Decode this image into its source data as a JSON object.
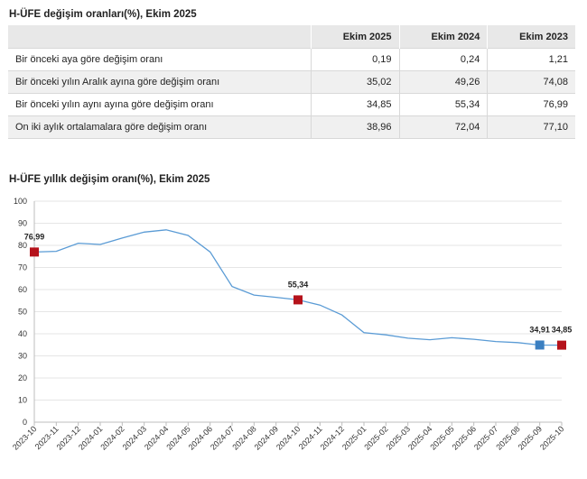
{
  "table_title": "H-ÜFE değişim oranları(%), Ekim 2025",
  "table": {
    "headers": [
      "",
      "Ekim 2025",
      "Ekim 2024",
      "Ekim 2023"
    ],
    "rows": [
      {
        "label": "Bir önceki aya göre değişim oranı",
        "values": [
          "0,19",
          "0,24",
          "1,21"
        ]
      },
      {
        "label": "Bir önceki yılın Aralık ayına göre değişim oranı",
        "values": [
          "35,02",
          "49,26",
          "74,08"
        ]
      },
      {
        "label": "Bir önceki yılın aynı ayına göre değişim oranı",
        "values": [
          "34,85",
          "55,34",
          "76,99"
        ]
      },
      {
        "label": "On iki aylık ortalamalara göre değişim oranı",
        "values": [
          "38,96",
          "72,04",
          "77,10"
        ]
      }
    ]
  },
  "chart_title": "H-ÜFE yıllık değişim oranı(%), Ekim 2025",
  "colors": {
    "line": "#5a9bd5",
    "marker_red": "#b5121b",
    "marker_blue": "#3a7fc1",
    "grid": "#e6e6e6"
  },
  "chart_data": {
    "type": "line",
    "title": "H-ÜFE yıllık değişim oranı(%), Ekim 2025",
    "xlabel": "",
    "ylabel": "",
    "ylim": [
      0,
      100
    ],
    "yticks": [
      0,
      10,
      20,
      30,
      40,
      50,
      60,
      70,
      80,
      90,
      100
    ],
    "grid": true,
    "categories": [
      "2023-10",
      "2023-11",
      "2023-12",
      "2024-01",
      "2024-02",
      "2024-03",
      "2024-04",
      "2024-05",
      "2024-06",
      "2024-07",
      "2024-08",
      "2024-09",
      "2024-10",
      "2024-11",
      "2024-12",
      "2025-01",
      "2025-02",
      "2025-03",
      "2025-04",
      "2025-05",
      "2025-06",
      "2025-07",
      "2025-08",
      "2025-09",
      "2025-10"
    ],
    "series": [
      {
        "values": [
          76.99,
          77.3,
          81.0,
          80.4,
          83.3,
          86.0,
          87.0,
          84.5,
          77.0,
          61.4,
          57.5,
          56.5,
          55.34,
          53.0,
          48.5,
          40.5,
          39.5,
          38.0,
          37.3,
          38.2,
          37.5,
          36.5,
          36.0,
          34.91,
          34.85
        ]
      }
    ],
    "highlighted_points": [
      {
        "x": "2023-10",
        "value": 76.99,
        "label": "76,99",
        "color": "red"
      },
      {
        "x": "2024-10",
        "value": 55.34,
        "label": "55,34",
        "color": "red"
      },
      {
        "x": "2025-09",
        "value": 34.91,
        "label": "34,91",
        "color": "blue"
      },
      {
        "x": "2025-10",
        "value": 34.85,
        "label": "34,85",
        "color": "red"
      }
    ]
  }
}
